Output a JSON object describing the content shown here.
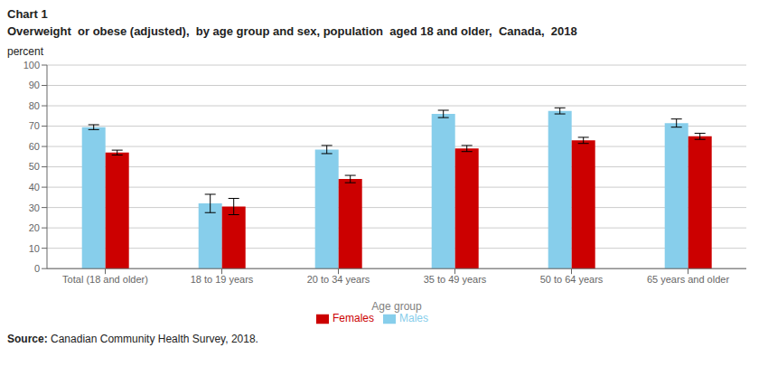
{
  "chart_data": {
    "type": "bar",
    "title": "Overweight  or obese (adjusted),  by age group and sex, population  aged 18 and older,  Canada,  2018",
    "annotations": [
      "Chart 1",
      "Source: Canadian Community Health Survey, 2018."
    ],
    "xlabel": "Age group",
    "ylabel": "percent",
    "categories": [
      "Total (18 and older)",
      "18 to 19 years",
      "20 to 34 years",
      "35 to 49 years",
      "50 to 64 years",
      "65 years and older"
    ],
    "series": [
      {
        "name": "Males",
        "color": "#87CEEB",
        "values": [
          69.5,
          32.0,
          58.5,
          76.0,
          77.5,
          71.5
        ],
        "errors": [
          1.2,
          4.5,
          2.0,
          1.8,
          1.5,
          2.0
        ]
      },
      {
        "name": "Females",
        "color": "#CC0000",
        "values": [
          57.0,
          30.5,
          44.0,
          59.0,
          63.0,
          65.0
        ],
        "errors": [
          1.2,
          4.0,
          1.8,
          1.5,
          1.5,
          1.5
        ]
      }
    ],
    "ylim": [
      0,
      100
    ],
    "yticks": [
      0,
      10,
      20,
      30,
      40,
      50,
      60,
      70,
      80,
      90,
      100
    ],
    "grid": true,
    "legend": "bottom"
  }
}
